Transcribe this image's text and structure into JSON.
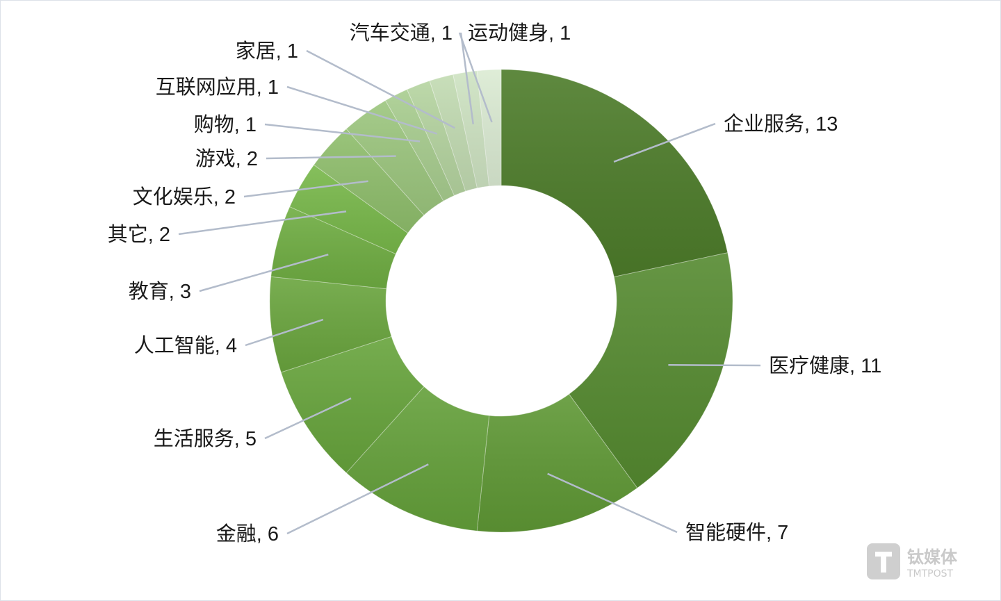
{
  "chart_data": {
    "type": "pie",
    "donut": true,
    "categories": [
      "企业服务",
      "医疗健康",
      "智能硬件",
      "金融",
      "生活服务",
      "人工智能",
      "教育",
      "其它",
      "文化娱乐",
      "游戏",
      "购物",
      "互联网应用",
      "家居",
      "汽车交通",
      "运动健身"
    ],
    "values": [
      13,
      11,
      7,
      6,
      5,
      4,
      3,
      2,
      2,
      2,
      1,
      1,
      1,
      1,
      1
    ],
    "labels": [
      "企业服务, 13",
      "医疗健康, 11",
      "智能硬件, 7",
      "金融, 6",
      "生活服务, 5",
      "人工智能, 4",
      "教育, 3",
      "其它, 2",
      "文化娱乐, 2",
      "游戏, 2",
      "购物, 1",
      "互联网应用, 1",
      "家居, 1",
      "汽车交通, 1",
      "运动健身, 1"
    ],
    "colors": [
      "#4d7c2a",
      "#558a30",
      "#5f9835",
      "#64a03a",
      "#67a43c",
      "#6aa53e",
      "#6fad42",
      "#78b84a",
      "#8fbe6c",
      "#9cc67e",
      "#a8cd8f",
      "#b5d4a0",
      "#c2dbb2",
      "#ceE3c2",
      "#dbebd3"
    ],
    "legend": "none",
    "title": ""
  },
  "watermark": {
    "brand": "钛媒体",
    "sub": "TMTPOST"
  }
}
